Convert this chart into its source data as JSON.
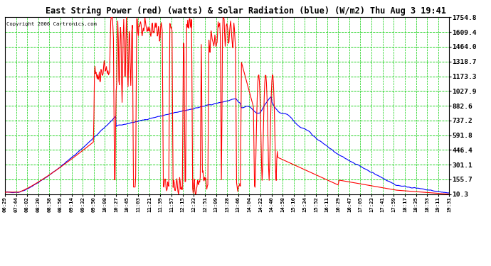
{
  "title": "East String Power (red) (watts) & Solar Radiation (blue) (W/m2) Thu Aug 3 19:41",
  "copyright": "Copyright 2006 Cartronics.com",
  "background_color": "#ffffff",
  "plot_bg_color": "#ffffff",
  "grid_color": "#00cc00",
  "ylim": [
    10.3,
    1754.8
  ],
  "yticks": [
    10.3,
    155.7,
    301.1,
    446.4,
    591.8,
    737.2,
    882.6,
    1027.9,
    1173.3,
    1318.7,
    1464.0,
    1609.4,
    1754.8
  ],
  "xtick_labels": [
    "06:29",
    "07:44",
    "08:02",
    "08:20",
    "08:38",
    "08:56",
    "09:14",
    "09:32",
    "09:50",
    "10:08",
    "10:27",
    "10:45",
    "11:03",
    "11:21",
    "11:39",
    "11:57",
    "12:15",
    "12:33",
    "12:51",
    "13:09",
    "13:28",
    "13:46",
    "14:04",
    "14:22",
    "14:40",
    "14:58",
    "15:16",
    "15:34",
    "15:52",
    "16:11",
    "16:29",
    "16:47",
    "17:05",
    "17:23",
    "17:41",
    "17:59",
    "18:17",
    "18:35",
    "18:53",
    "19:11",
    "19:31"
  ],
  "line_color_red": "#ff0000",
  "line_color_blue": "#0000ff",
  "line_width": 0.8
}
